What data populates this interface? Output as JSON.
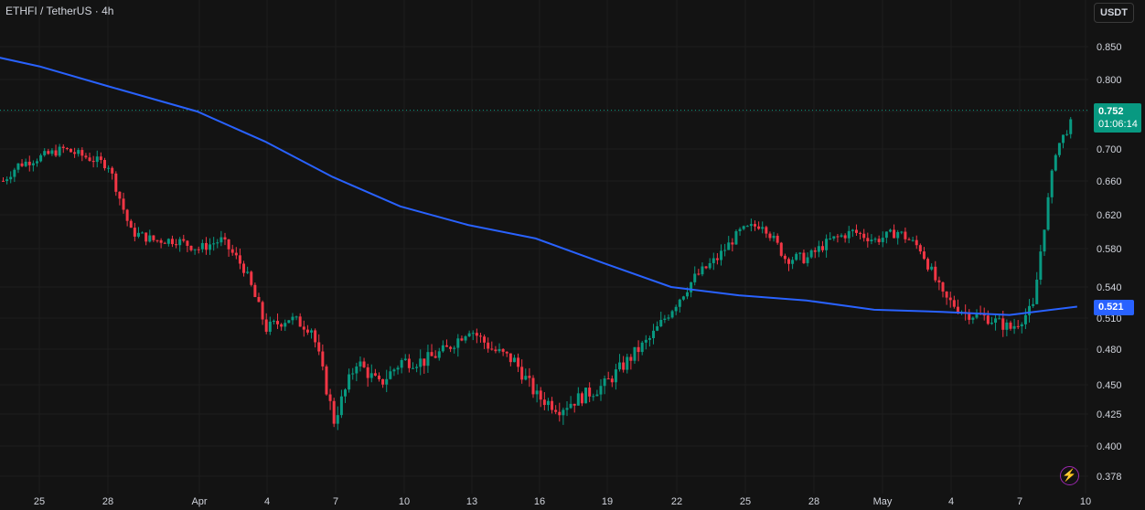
{
  "header": {
    "symbol": "ETHFI / TetherUS · 4h"
  },
  "currency_button": "USDT",
  "last_price": {
    "value": "0.752",
    "countdown": "01:06:14",
    "color": "#089981"
  },
  "ma_price": {
    "value": "0.521",
    "color": "#2962ff"
  },
  "icons": {
    "bolt": "lightning-bolt-icon"
  },
  "colors": {
    "background": "#131313",
    "up": "#089981",
    "down": "#f23645",
    "ma": "#2962ff",
    "grid": "#1e1e1e"
  },
  "chart_data": {
    "type": "candlestick",
    "y_ticks": [
      "0.850",
      "0.800",
      "0.750",
      "0.700",
      "0.660",
      "0.620",
      "0.580",
      "0.540",
      "0.510",
      "0.480",
      "0.450",
      "0.425",
      "0.400",
      "0.378"
    ],
    "x_ticks": [
      "25",
      "28",
      "Apr",
      "4",
      "7",
      "10",
      "13",
      "16",
      "19",
      "22",
      "25",
      "28",
      "May",
      "4",
      "7",
      "10"
    ],
    "ylim": [
      0.37,
      0.88
    ],
    "grid": true,
    "price_series": [
      {
        "date": "Mar 23",
        "close": 0.65
      },
      {
        "date": "Mar 24",
        "close": 0.68
      },
      {
        "date": "Mar 25",
        "close": 0.69
      },
      {
        "date": "Mar 26",
        "close": 0.7
      },
      {
        "date": "Mar 27",
        "close": 0.69
      },
      {
        "date": "Mar 28",
        "close": 0.68
      },
      {
        "date": "Mar 29",
        "close": 0.6
      },
      {
        "date": "Mar 30",
        "close": 0.59
      },
      {
        "date": "Mar 31",
        "close": 0.59
      },
      {
        "date": "Apr 1",
        "close": 0.58
      },
      {
        "date": "Apr 2",
        "close": 0.59
      },
      {
        "date": "Apr 3",
        "close": 0.56
      },
      {
        "date": "Apr 4",
        "close": 0.5
      },
      {
        "date": "Apr 5",
        "close": 0.51
      },
      {
        "date": "Apr 6",
        "close": 0.5
      },
      {
        "date": "Apr 7",
        "close": 0.42
      },
      {
        "date": "Apr 8",
        "close": 0.47
      },
      {
        "date": "Apr 9",
        "close": 0.45
      },
      {
        "date": "Apr 10",
        "close": 0.47
      },
      {
        "date": "Apr 11",
        "close": 0.47
      },
      {
        "date": "Apr 12",
        "close": 0.48
      },
      {
        "date": "Apr 13",
        "close": 0.5
      },
      {
        "date": "Apr 14",
        "close": 0.48
      },
      {
        "date": "Apr 15",
        "close": 0.47
      },
      {
        "date": "Apr 16",
        "close": 0.44
      },
      {
        "date": "Apr 17",
        "close": 0.43
      },
      {
        "date": "Apr 18",
        "close": 0.44
      },
      {
        "date": "Apr 19",
        "close": 0.45
      },
      {
        "date": "Apr 20",
        "close": 0.47
      },
      {
        "date": "Apr 21",
        "close": 0.49
      },
      {
        "date": "Apr 22",
        "close": 0.52
      },
      {
        "date": "Apr 23",
        "close": 0.55
      },
      {
        "date": "Apr 24",
        "close": 0.57
      },
      {
        "date": "Apr 25",
        "close": 0.6
      },
      {
        "date": "Apr 26",
        "close": 0.61
      },
      {
        "date": "Apr 27",
        "close": 0.57
      },
      {
        "date": "Apr 28",
        "close": 0.57
      },
      {
        "date": "Apr 29",
        "close": 0.59
      },
      {
        "date": "Apr 30",
        "close": 0.6
      },
      {
        "date": "May 1",
        "close": 0.59
      },
      {
        "date": "May 2",
        "close": 0.6
      },
      {
        "date": "May 3",
        "close": 0.58
      },
      {
        "date": "May 4",
        "close": 0.53
      },
      {
        "date": "May 5",
        "close": 0.515
      },
      {
        "date": "May 6",
        "close": 0.51
      },
      {
        "date": "May 7",
        "close": 0.5
      },
      {
        "date": "May 8",
        "close": 0.52
      },
      {
        "date": "May 9",
        "close": 0.7
      },
      {
        "date": "May 10",
        "close": 0.752
      }
    ],
    "ma_series": [
      {
        "date": "Mar 21",
        "value": 0.85
      },
      {
        "date": "Mar 25",
        "value": 0.82
      },
      {
        "date": "Mar 28",
        "value": 0.79
      },
      {
        "date": "Apr 1",
        "value": 0.75
      },
      {
        "date": "Apr 4",
        "value": 0.71
      },
      {
        "date": "Apr 7",
        "value": 0.665
      },
      {
        "date": "Apr 10",
        "value": 0.63
      },
      {
        "date": "Apr 13",
        "value": 0.608
      },
      {
        "date": "Apr 16",
        "value": 0.592
      },
      {
        "date": "Apr 19",
        "value": 0.565
      },
      {
        "date": "Apr 22",
        "value": 0.54
      },
      {
        "date": "Apr 25",
        "value": 0.532
      },
      {
        "date": "Apr 28",
        "value": 0.527
      },
      {
        "date": "May 1",
        "value": 0.518
      },
      {
        "date": "May 4",
        "value": 0.516
      },
      {
        "date": "May 7",
        "value": 0.513
      },
      {
        "date": "May 10",
        "value": 0.521
      }
    ]
  }
}
